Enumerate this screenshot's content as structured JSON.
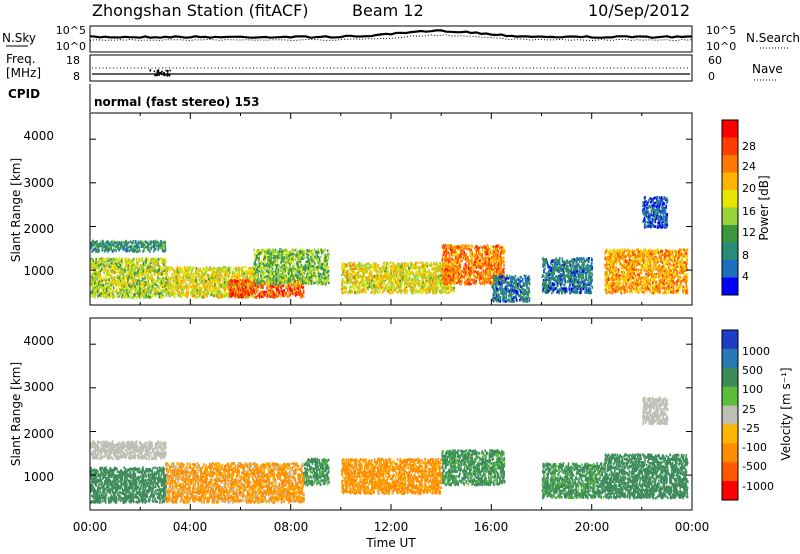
{
  "header": {
    "station": "Zhongshan Station (fitACF)",
    "beam": "Beam 12",
    "date": "10/Sep/2012"
  },
  "noise_panel": {
    "left_label": "N.Sky",
    "right_label": "N.Search",
    "left_ticks": [
      "10^5",
      "10^0"
    ],
    "right_ticks": [
      "10^5",
      "10^0"
    ],
    "right_legend_line": "dotted"
  },
  "freq_panel": {
    "left_label_line1": "Freq.",
    "left_label_line2": "[MHz]",
    "left_ticks": [
      "18",
      "8"
    ],
    "right_label": "Nave",
    "right_ticks": [
      "60",
      "0"
    ],
    "right_legend_line": "dotted"
  },
  "cpid_panel": {
    "left_label": "CPID",
    "mode_text": "normal (fast stereo) 153"
  },
  "power_panel": {
    "ylabel": "Slant Range [km]",
    "yticks": [
      "4000",
      "3000",
      "2000",
      "1000"
    ],
    "colorbar": {
      "label": "Power [dB]",
      "ticks": [
        "28",
        "24",
        "20",
        "16",
        "12",
        "8",
        "4"
      ],
      "colors": [
        "#ff0000",
        "#ff3c00",
        "#ff7800",
        "#ffb400",
        "#e6e600",
        "#96d23c",
        "#3c963c",
        "#288c78",
        "#1e6ebe",
        "#0000ff"
      ]
    }
  },
  "velocity_panel": {
    "ylabel": "Slant Range [km]",
    "yticks": [
      "4000",
      "3000",
      "2000",
      "1000"
    ],
    "colorbar": {
      "label": "Velocity [m s⁻¹]",
      "ticks": [
        "1000",
        "500",
        "100",
        "25",
        "-25",
        "-100",
        "-500",
        "-1000"
      ],
      "colors": [
        "#1e3cc8",
        "#2878b4",
        "#3c8c5a",
        "#5abe3c",
        "#bebeb4",
        "#ffb400",
        "#ff8c00",
        "#ff5a00",
        "#ff0000"
      ],
      "ground_scatter_color": "#bebeb4"
    }
  },
  "time_axis": {
    "label": "Time UT",
    "ticks": [
      "00:00",
      "04:00",
      "08:00",
      "12:00",
      "16:00",
      "20:00",
      "00:00"
    ]
  },
  "chart_data": {
    "type": "heatmap",
    "x_unit": "hours UT",
    "xlim": [
      0,
      24
    ],
    "ylim": [
      200,
      4600
    ],
    "power_scatter_regions": [
      {
        "t0": 0.0,
        "t1": 3.0,
        "r0": 400,
        "r1": 1300,
        "power_db": 16
      },
      {
        "t0": 0.0,
        "t1": 3.0,
        "r0": 1450,
        "r1": 1700,
        "power_db": 10
      },
      {
        "t0": 3.0,
        "t1": 6.5,
        "r0": 400,
        "r1": 1100,
        "power_db": 18
      },
      {
        "t0": 5.5,
        "t1": 8.5,
        "r0": 400,
        "r1": 800,
        "power_db": 26
      },
      {
        "t0": 6.5,
        "t1": 9.5,
        "r0": 700,
        "r1": 1500,
        "power_db": 14
      },
      {
        "t0": 10.0,
        "t1": 14.5,
        "r0": 500,
        "r1": 1200,
        "power_db": 18
      },
      {
        "t0": 14.0,
        "t1": 16.5,
        "r0": 700,
        "r1": 1600,
        "power_db": 24
      },
      {
        "t0": 16.0,
        "t1": 17.5,
        "r0": 300,
        "r1": 900,
        "power_db": 8
      },
      {
        "t0": 18.0,
        "t1": 20.0,
        "r0": 500,
        "r1": 1300,
        "power_db": 8
      },
      {
        "t0": 20.5,
        "t1": 23.8,
        "r0": 500,
        "r1": 1500,
        "power_db": 22
      },
      {
        "t0": 22.0,
        "t1": 23.0,
        "r0": 2000,
        "r1": 2700,
        "power_db": 6
      }
    ],
    "velocity_scatter_regions": [
      {
        "t0": 0.0,
        "t1": 3.0,
        "r0": 400,
        "r1": 1200,
        "velocity": 300
      },
      {
        "t0": 0.0,
        "t1": 3.0,
        "r0": 1400,
        "r1": 1800,
        "velocity": 0
      },
      {
        "t0": 3.0,
        "t1": 8.5,
        "r0": 400,
        "r1": 1300,
        "velocity": -150
      },
      {
        "t0": 8.5,
        "t1": 9.5,
        "r0": 800,
        "r1": 1400,
        "velocity": 200
      },
      {
        "t0": 10.0,
        "t1": 14.0,
        "r0": 600,
        "r1": 1400,
        "velocity": -200
      },
      {
        "t0": 14.0,
        "t1": 16.5,
        "r0": 800,
        "r1": 1600,
        "velocity": 200
      },
      {
        "t0": 18.0,
        "t1": 20.5,
        "r0": 500,
        "r1": 1300,
        "velocity": 200
      },
      {
        "t0": 20.5,
        "t1": 23.8,
        "r0": 500,
        "r1": 1500,
        "velocity": 300
      },
      {
        "t0": 22.0,
        "t1": 23.0,
        "r0": 2200,
        "r1": 2800,
        "velocity": 0
      }
    ]
  }
}
